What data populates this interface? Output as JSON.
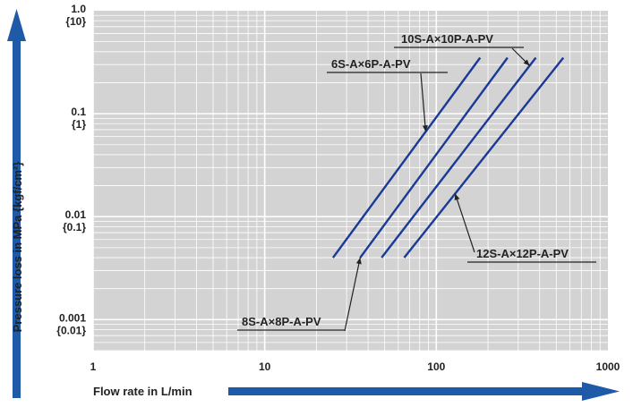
{
  "chart_data": {
    "type": "line",
    "x_scale": "log",
    "y_scale": "log",
    "xlim": [
      1,
      1000
    ],
    "ylim": [
      0.0005,
      1.0
    ],
    "grid": true,
    "xlabel": "Flow rate in L/min",
    "ylabel": "Pressure loss in MPa {kgf/cm²}",
    "x_ticks": [
      "1",
      "10",
      "100",
      "1000"
    ],
    "y_ticks": [
      {
        "value": 1.0,
        "label": "1.0",
        "sub": "{10}"
      },
      {
        "value": 0.1,
        "label": "0.1",
        "sub": "{1}"
      },
      {
        "value": 0.01,
        "label": "0.01",
        "sub": "{0.1}"
      },
      {
        "value": 0.001,
        "label": "0.001",
        "sub": "{0.01}"
      }
    ],
    "series": [
      {
        "name": "6S-A×6P-A-PV",
        "x": [
          25,
          180
        ],
        "y": [
          0.004,
          0.35
        ]
      },
      {
        "name": "8S-A×8P-A-PV",
        "x": [
          36,
          260
        ],
        "y": [
          0.004,
          0.35
        ]
      },
      {
        "name": "10S-A×10P-A-PV",
        "x": [
          48,
          380
        ],
        "y": [
          0.004,
          0.35
        ]
      },
      {
        "name": "12S-A×12P-A-PV",
        "x": [
          65,
          550
        ],
        "y": [
          0.004,
          0.35
        ]
      }
    ],
    "colors": {
      "line": "#1a3a96",
      "plot_bg": "#d3d3d3",
      "grid": "#ffffff",
      "axis_arrow": "#1e5aa8"
    }
  }
}
